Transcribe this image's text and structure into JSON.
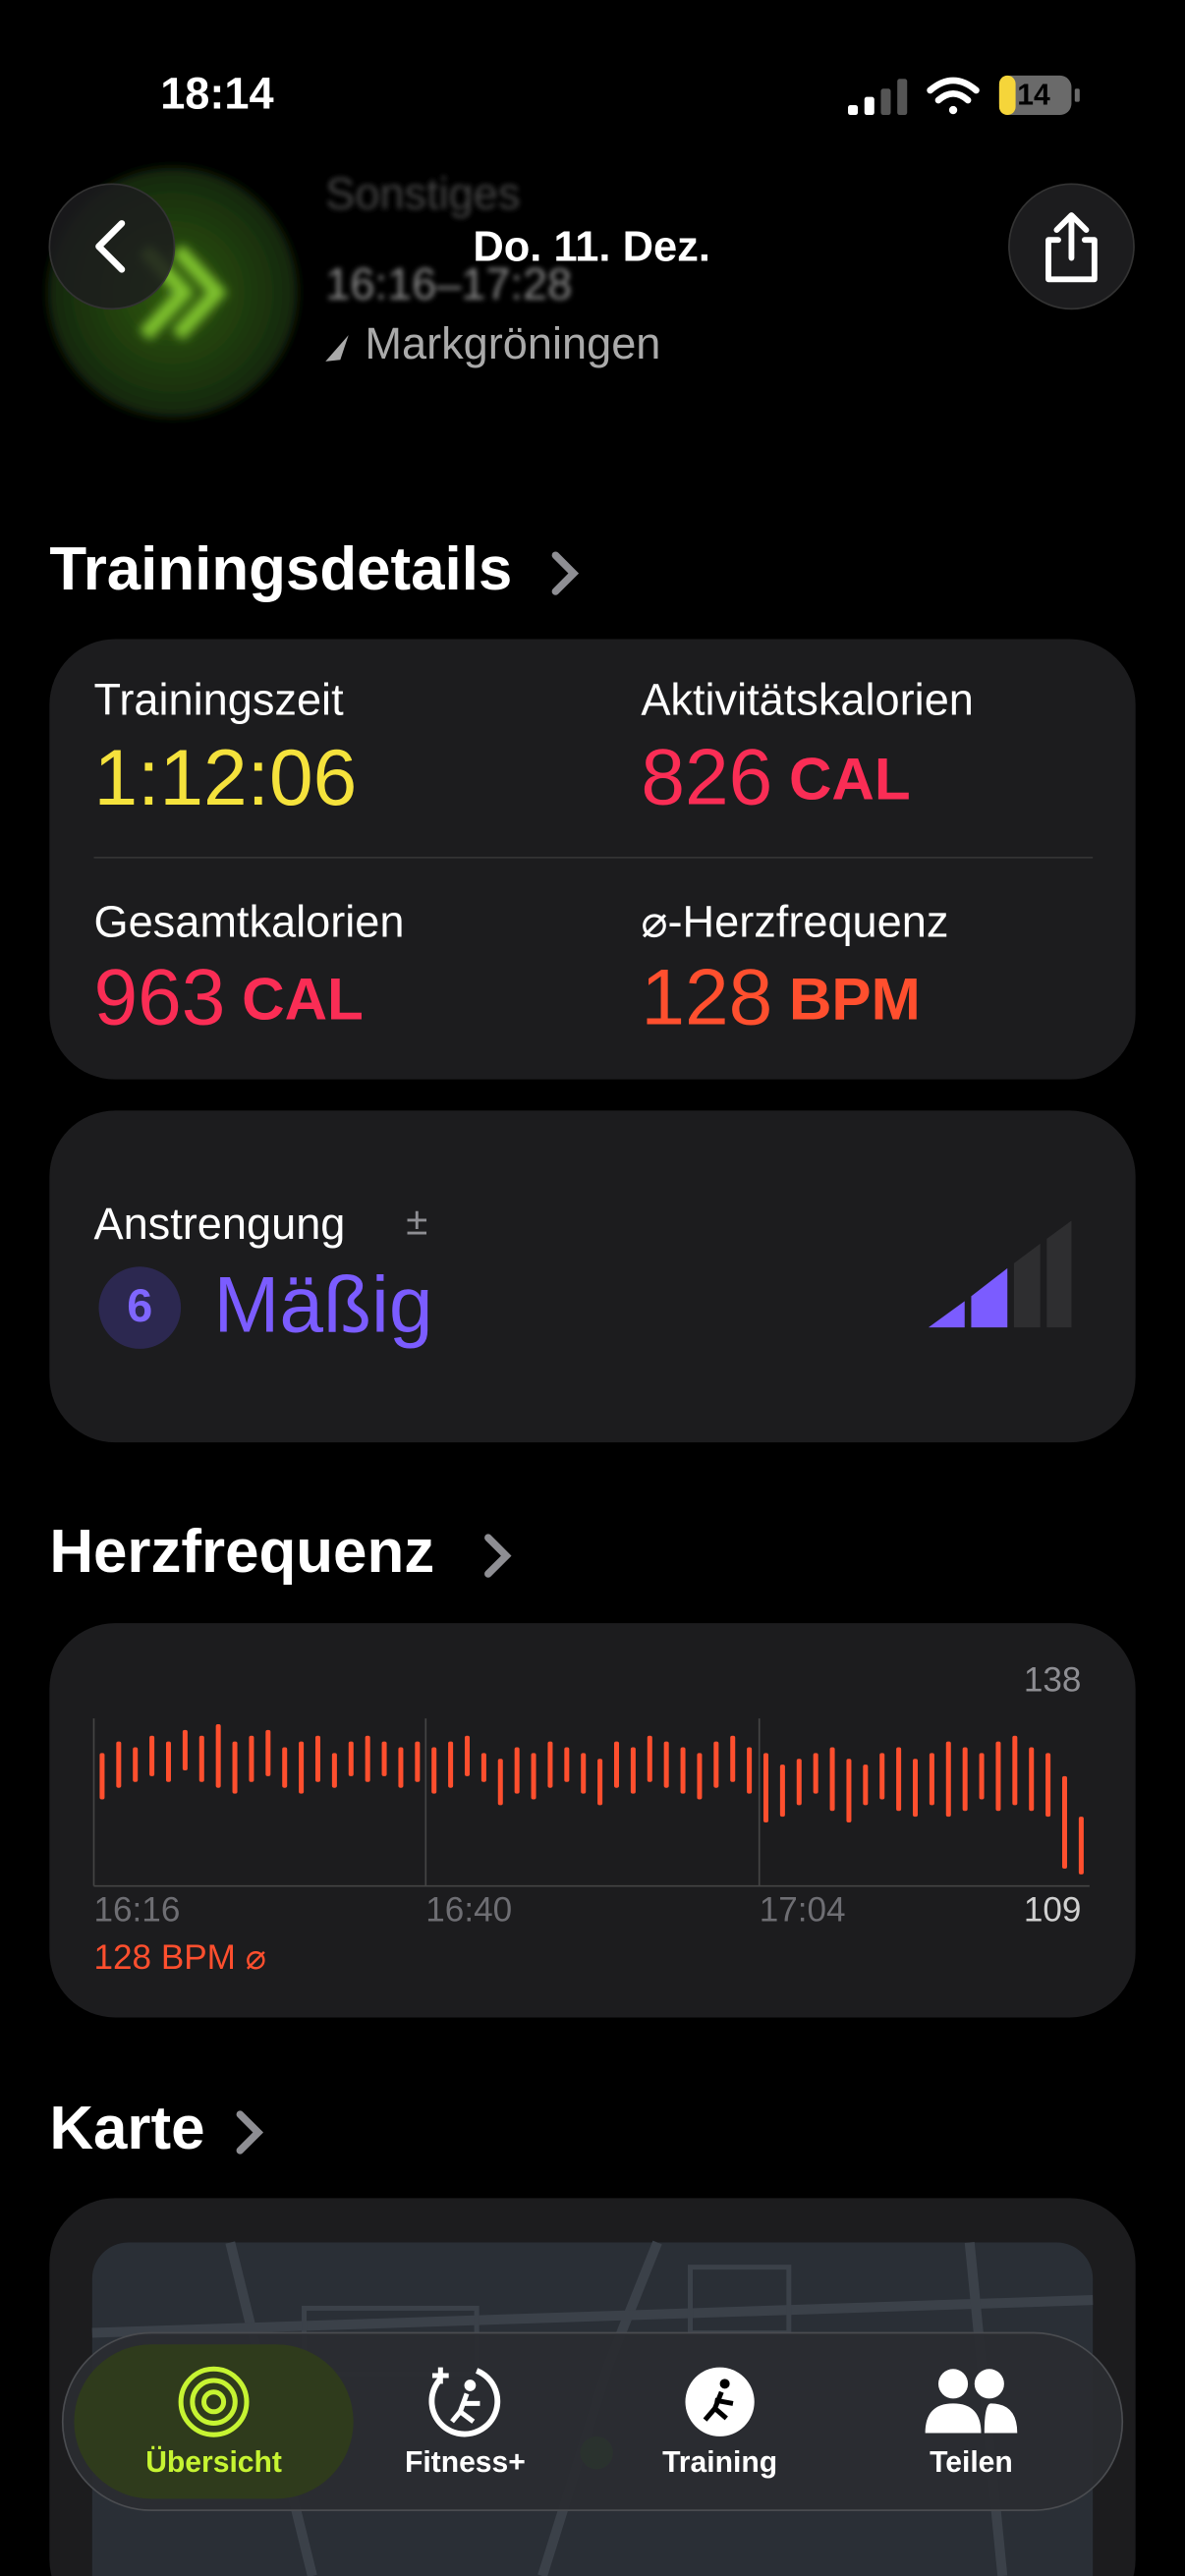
{
  "status_bar": {
    "time": "18:14",
    "battery": "14"
  },
  "header": {
    "date": "Do. 11. Dez.",
    "workout": "Sonstiges",
    "time_range": "16:16–17:28",
    "location": "Markgröningen"
  },
  "training_details": {
    "title": "Trainingsdetails",
    "metrics": [
      {
        "label": "Trainingszeit",
        "value": "1:12:06"
      },
      {
        "label": "Aktivitätskalorien",
        "value": 826,
        "unit": "CAL"
      },
      {
        "label": "Gesamtkalorien",
        "value": 963,
        "unit": "CAL"
      },
      {
        "label": "⌀-Herzfrequenz",
        "value": 128,
        "unit": "BPM"
      }
    ]
  },
  "effort": {
    "label": "Anstrengung",
    "symbol": "±",
    "score": 6,
    "rating": "Mäßig"
  },
  "heart_rate": {
    "title": "Herzfrequenz",
    "average": 128,
    "unit": "BPM",
    "average_symbol": "⌀"
  },
  "chart_data": {
    "type": "range-bar",
    "color": "#ff4f2e",
    "ylim": [
      109,
      138
    ],
    "yticks": [
      109,
      138
    ],
    "xtick_labels": [
      "16:16",
      "16:40",
      "17:04"
    ],
    "lows": [
      124,
      126,
      127,
      128,
      127,
      129,
      127,
      126,
      125,
      127,
      128,
      126,
      125,
      127,
      126,
      128,
      127,
      128,
      126,
      127,
      125,
      126,
      128,
      127,
      123,
      125,
      124,
      126,
      127,
      125,
      123,
      126,
      125,
      127,
      126,
      125,
      124,
      126,
      127,
      125,
      120,
      121,
      123,
      125,
      122,
      120,
      123,
      124,
      122,
      121,
      123,
      121,
      122,
      124,
      122,
      123,
      122,
      121,
      112,
      111
    ],
    "highs": [
      132,
      134,
      133,
      135,
      134,
      136,
      135,
      137,
      134,
      135,
      136,
      133,
      134,
      135,
      132,
      134,
      135,
      134,
      133,
      134,
      133,
      134,
      135,
      132,
      131,
      133,
      132,
      134,
      133,
      132,
      131,
      134,
      133,
      135,
      134,
      133,
      132,
      134,
      135,
      133,
      132,
      130,
      131,
      132,
      133,
      131,
      130,
      132,
      133,
      131,
      132,
      134,
      133,
      132,
      134,
      135,
      133,
      132,
      128,
      121
    ]
  },
  "map": {
    "title": "Karte"
  },
  "tab_bar": {
    "tabs": [
      "Übersicht",
      "Fitness+",
      "Training",
      "Teilen"
    ]
  }
}
